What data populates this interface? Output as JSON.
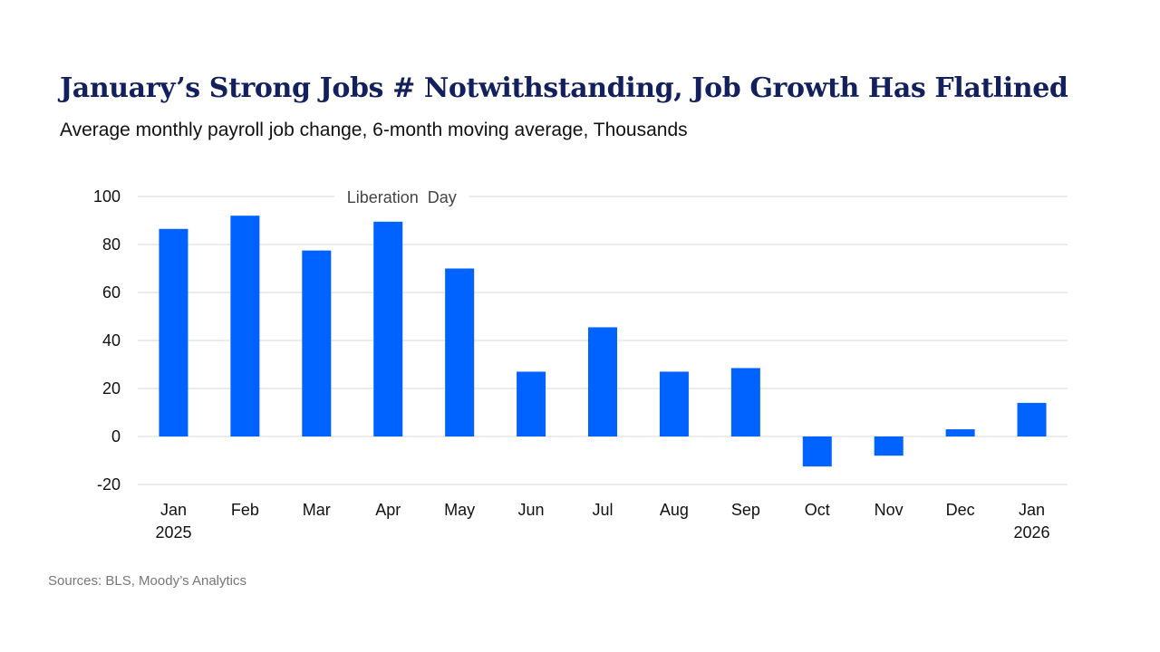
{
  "header": {
    "title": "January’s Strong Jobs # Notwithstanding, Job Growth Has Flatlined",
    "subtitle": "Average monthly payroll job change, 6-month moving average, Thousands"
  },
  "footer": {
    "source": "Sources: BLS, Moody’s Analytics"
  },
  "colors": {
    "bar": "#0062ff",
    "title": "#13205e",
    "grid": "#d9d9d9"
  },
  "chart_data": {
    "type": "bar",
    "title": "January’s Strong Jobs # Notwithstanding, Job Growth Has Flatlined",
    "subtitle": "Average monthly payroll job change, 6-month moving average, Thousands",
    "xlabel": "",
    "ylabel": "",
    "categories": [
      "Jan",
      "Feb",
      "Mar",
      "Apr",
      "May",
      "Jun",
      "Jul",
      "Aug",
      "Sep",
      "Oct",
      "Nov",
      "Dec",
      "Jan"
    ],
    "category_sublabels": [
      "2025",
      "",
      "",
      "",
      "",
      "",
      "",
      "",
      "",
      "",
      "",
      "",
      "2026"
    ],
    "values": [
      86.5,
      92,
      77.5,
      89.5,
      70,
      27,
      45.5,
      27,
      28.5,
      -12.5,
      -8,
      3,
      14
    ],
    "ylim": [
      -20,
      100
    ],
    "yticks": [
      -20,
      0,
      20,
      40,
      60,
      80,
      100
    ],
    "grid": true,
    "annotation": {
      "text": "Liberation  Day",
      "category_index": 3
    }
  }
}
